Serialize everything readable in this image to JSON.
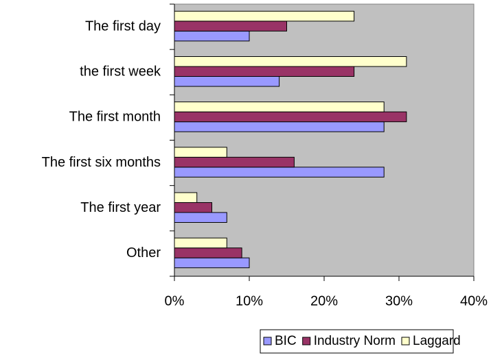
{
  "chart_data": {
    "type": "bar",
    "orientation": "horizontal",
    "categories": [
      "The first day",
      "the first week",
      "The first month",
      "The first six months",
      "The first year",
      "Other"
    ],
    "series": [
      {
        "name": "BIC",
        "color": "#9999ff",
        "values": [
          10,
          14,
          28,
          28,
          7,
          10
        ]
      },
      {
        "name": "Industry Norm",
        "color": "#993366",
        "values": [
          15,
          24,
          31,
          16,
          5,
          9
        ]
      },
      {
        "name": "Laggard",
        "color": "#ffffcc",
        "values": [
          24,
          31,
          28,
          7,
          3,
          7
        ]
      }
    ],
    "xlim": [
      0,
      40
    ],
    "xticks": [
      {
        "value": 0,
        "label": "0%"
      },
      {
        "value": 10,
        "label": "10%"
      },
      {
        "value": 20,
        "label": "20%"
      },
      {
        "value": 30,
        "label": "30%"
      },
      {
        "value": 40,
        "label": "40%"
      }
    ],
    "plot_background": "#c0c0c0",
    "legend": "bottom"
  }
}
